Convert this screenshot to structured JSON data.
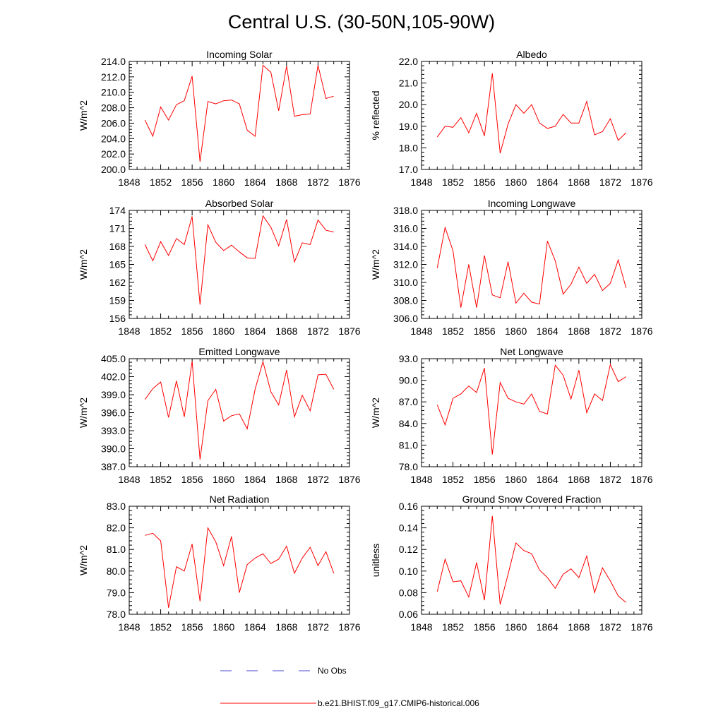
{
  "figure": {
    "title": "Central U.S. (30-50N,105-90W)"
  },
  "legend": {
    "entries": [
      {
        "label": "No Obs",
        "color": "#4a4ad0",
        "style": "dashed"
      },
      {
        "label": "b.e21.BHIST.f09_g17.CMIP6-historical.006",
        "color": "#ff0000",
        "style": "solid"
      }
    ]
  },
  "chart_data": [
    {
      "type": "line",
      "title": "Incoming Solar",
      "ylabel": "W/m^2",
      "xlim": [
        1848,
        1876
      ],
      "ylim": [
        200,
        214
      ],
      "xticks": [
        1848,
        1852,
        1856,
        1860,
        1864,
        1868,
        1872,
        1876
      ],
      "xtick_labels": [
        "1848",
        "1852",
        "1856",
        "1860",
        "1864",
        "1868",
        "1872",
        "1876"
      ],
      "yticks": [
        200,
        202,
        204,
        206,
        208,
        210,
        212,
        214
      ],
      "ytick_labels": [
        "200.0",
        "202.0",
        "204.0",
        "206.0",
        "208.0",
        "210.0",
        "212.0",
        "214.0"
      ],
      "series": [
        {
          "name": "b.e21.BHIST.f09_g17.CMIP6-historical.006",
          "color": "#ff0000",
          "x": [
            1850,
            1851,
            1852,
            1853,
            1854,
            1855,
            1856,
            1857,
            1858,
            1859,
            1860,
            1861,
            1862,
            1863,
            1864,
            1865,
            1866,
            1867,
            1868,
            1869,
            1870,
            1871,
            1872,
            1873,
            1874
          ],
          "values": [
            206.4,
            204.3,
            208.1,
            206.4,
            208.4,
            208.9,
            212.1,
            201.0,
            208.8,
            208.5,
            208.9,
            209.0,
            208.5,
            205.1,
            204.3,
            213.5,
            212.6,
            207.6,
            213.4,
            206.9,
            207.1,
            207.2,
            213.5,
            209.2,
            209.5
          ]
        }
      ]
    },
    {
      "type": "line",
      "title": "Albedo",
      "ylabel": "% reflected",
      "xlim": [
        1848,
        1876
      ],
      "ylim": [
        17,
        22
      ],
      "xticks": [
        1848,
        1852,
        1856,
        1860,
        1864,
        1868,
        1872,
        1876
      ],
      "xtick_labels": [
        "1848",
        "1852",
        "1856",
        "1860",
        "1864",
        "1868",
        "1872",
        "1876"
      ],
      "yticks": [
        17,
        18,
        19,
        20,
        21,
        22
      ],
      "ytick_labels": [
        "17.0",
        "18.0",
        "19.0",
        "20.0",
        "21.0",
        "22.0"
      ],
      "series": [
        {
          "name": "b.e21.BHIST.f09_g17.CMIP6-historical.006",
          "color": "#ff0000",
          "x": [
            1850,
            1851,
            1852,
            1853,
            1854,
            1855,
            1856,
            1857,
            1858,
            1859,
            1860,
            1861,
            1862,
            1863,
            1864,
            1865,
            1866,
            1867,
            1868,
            1869,
            1870,
            1871,
            1872,
            1873,
            1874
          ],
          "values": [
            18.5,
            19.0,
            18.95,
            19.4,
            18.7,
            19.6,
            18.55,
            21.45,
            17.75,
            19.1,
            20.0,
            19.6,
            20.0,
            19.15,
            18.9,
            19.0,
            19.55,
            19.15,
            19.15,
            20.15,
            18.6,
            18.75,
            19.35,
            18.35,
            18.7
          ]
        }
      ]
    },
    {
      "type": "line",
      "title": "Absorbed Solar",
      "ylabel": "W/m^2",
      "xlim": [
        1848,
        1876
      ],
      "ylim": [
        156,
        174
      ],
      "xticks": [
        1848,
        1852,
        1856,
        1860,
        1864,
        1868,
        1872,
        1876
      ],
      "xtick_labels": [
        "1848",
        "1852",
        "1856",
        "1860",
        "1864",
        "1868",
        "1872",
        "1876"
      ],
      "yticks": [
        156,
        159,
        162,
        165,
        168,
        171,
        174
      ],
      "ytick_labels": [
        "156",
        "159",
        "162",
        "165",
        "168",
        "171",
        "174"
      ],
      "series": [
        {
          "name": "b.e21.BHIST.f09_g17.CMIP6-historical.006",
          "color": "#ff0000",
          "x": [
            1850,
            1851,
            1852,
            1853,
            1854,
            1855,
            1856,
            1857,
            1858,
            1859,
            1860,
            1861,
            1862,
            1863,
            1864,
            1865,
            1866,
            1867,
            1868,
            1869,
            1870,
            1871,
            1872,
            1873,
            1874
          ],
          "values": [
            168.3,
            165.6,
            168.8,
            166.5,
            169.3,
            168.3,
            173.0,
            158.3,
            171.6,
            168.7,
            167.3,
            168.2,
            167.1,
            166.1,
            166.0,
            173.1,
            171.2,
            168.1,
            172.5,
            165.4,
            168.6,
            168.3,
            172.4,
            170.7,
            170.4
          ]
        }
      ]
    },
    {
      "type": "line",
      "title": "Incoming Longwave",
      "ylabel": "W/m^2",
      "xlim": [
        1848,
        1876
      ],
      "ylim": [
        306,
        318
      ],
      "xticks": [
        1848,
        1852,
        1856,
        1860,
        1864,
        1868,
        1872,
        1876
      ],
      "xtick_labels": [
        "1848",
        "1852",
        "1856",
        "1860",
        "1864",
        "1868",
        "1872",
        "1876"
      ],
      "yticks": [
        306,
        308,
        310,
        312,
        314,
        316,
        318
      ],
      "ytick_labels": [
        "306.0",
        "308.0",
        "310.0",
        "312.0",
        "314.0",
        "316.0",
        "318.0"
      ],
      "series": [
        {
          "name": "b.e21.BHIST.f09_g17.CMIP6-historical.006",
          "color": "#ff0000",
          "x": [
            1850,
            1851,
            1852,
            1853,
            1854,
            1855,
            1856,
            1857,
            1858,
            1859,
            1860,
            1861,
            1862,
            1863,
            1864,
            1865,
            1866,
            1867,
            1868,
            1869,
            1870,
            1871,
            1872,
            1873,
            1874
          ],
          "values": [
            311.6,
            316.1,
            313.5,
            307.2,
            312.0,
            307.2,
            313.0,
            308.6,
            308.3,
            312.3,
            307.7,
            308.8,
            307.8,
            307.6,
            314.6,
            312.4,
            308.7,
            309.8,
            311.7,
            309.9,
            310.9,
            309.1,
            309.9,
            312.5,
            309.4
          ]
        }
      ]
    },
    {
      "type": "line",
      "title": "Emitted Longwave",
      "ylabel": "W/m^2",
      "xlim": [
        1848,
        1876
      ],
      "ylim": [
        387,
        405
      ],
      "xticks": [
        1848,
        1852,
        1856,
        1860,
        1864,
        1868,
        1872,
        1876
      ],
      "xtick_labels": [
        "1848",
        "1852",
        "1856",
        "1860",
        "1864",
        "1868",
        "1872",
        "1876"
      ],
      "yticks": [
        387,
        390,
        393,
        396,
        399,
        402,
        405
      ],
      "ytick_labels": [
        "387.0",
        "390.0",
        "393.0",
        "396.0",
        "399.0",
        "402.0",
        "405.0"
      ],
      "series": [
        {
          "name": "b.e21.BHIST.f09_g17.CMIP6-historical.006",
          "color": "#ff0000",
          "x": [
            1850,
            1851,
            1852,
            1853,
            1854,
            1855,
            1856,
            1857,
            1858,
            1859,
            1860,
            1861,
            1862,
            1863,
            1864,
            1865,
            1866,
            1867,
            1868,
            1869,
            1870,
            1871,
            1872,
            1873,
            1874
          ],
          "values": [
            398.2,
            400.0,
            401.1,
            395.2,
            401.3,
            395.3,
            404.6,
            388.2,
            398.0,
            399.9,
            394.6,
            395.5,
            395.8,
            393.3,
            399.9,
            404.5,
            399.5,
            397.3,
            403.1,
            395.3,
            398.9,
            396.3,
            402.3,
            402.4,
            399.9
          ]
        }
      ]
    },
    {
      "type": "line",
      "title": "Net Longwave",
      "ylabel": "W/m^2",
      "xlim": [
        1848,
        1876
      ],
      "ylim": [
        78,
        93
      ],
      "xticks": [
        1848,
        1852,
        1856,
        1860,
        1864,
        1868,
        1872,
        1876
      ],
      "xtick_labels": [
        "1848",
        "1852",
        "1856",
        "1860",
        "1864",
        "1868",
        "1872",
        "1876"
      ],
      "yticks": [
        78,
        81,
        84,
        87,
        90,
        93
      ],
      "ytick_labels": [
        "78.0",
        "81.0",
        "84.0",
        "87.0",
        "90.0",
        "93.0"
      ],
      "series": [
        {
          "name": "b.e21.BHIST.f09_g17.CMIP6-historical.006",
          "color": "#ff0000",
          "x": [
            1850,
            1851,
            1852,
            1853,
            1854,
            1855,
            1856,
            1857,
            1858,
            1859,
            1860,
            1861,
            1862,
            1863,
            1864,
            1865,
            1866,
            1867,
            1868,
            1869,
            1870,
            1871,
            1872,
            1873,
            1874
          ],
          "values": [
            86.6,
            83.8,
            87.5,
            88.1,
            89.2,
            88.3,
            91.7,
            79.7,
            89.7,
            87.5,
            87.0,
            86.7,
            88.1,
            85.7,
            85.3,
            92.1,
            90.7,
            87.4,
            91.4,
            85.5,
            88.1,
            87.2,
            92.2,
            89.8,
            90.5
          ]
        }
      ]
    },
    {
      "type": "line",
      "title": "Net Radiation",
      "ylabel": "W/m^2",
      "xlim": [
        1848,
        1876
      ],
      "ylim": [
        78,
        83
      ],
      "xticks": [
        1848,
        1852,
        1856,
        1860,
        1864,
        1868,
        1872,
        1876
      ],
      "xtick_labels": [
        "1848",
        "1852",
        "1856",
        "1860",
        "1864",
        "1868",
        "1872",
        "1876"
      ],
      "yticks": [
        78,
        79,
        80,
        81,
        82,
        83
      ],
      "ytick_labels": [
        "78.0",
        "79.0",
        "80.0",
        "81.0",
        "82.0",
        "83.0"
      ],
      "series": [
        {
          "name": "b.e21.BHIST.f09_g17.CMIP6-historical.006",
          "color": "#ff0000",
          "x": [
            1850,
            1851,
            1852,
            1853,
            1854,
            1855,
            1856,
            1857,
            1858,
            1859,
            1860,
            1861,
            1862,
            1863,
            1864,
            1865,
            1866,
            1867,
            1868,
            1869,
            1870,
            1871,
            1872,
            1873,
            1874
          ],
          "values": [
            81.65,
            81.75,
            81.4,
            78.3,
            80.2,
            80.0,
            81.25,
            78.6,
            82.0,
            81.35,
            80.25,
            81.6,
            79.0,
            80.3,
            80.6,
            80.8,
            80.35,
            80.55,
            81.15,
            79.9,
            80.6,
            81.1,
            80.25,
            80.9,
            79.9
          ]
        }
      ]
    },
    {
      "type": "line",
      "title": "Ground Snow Covered Fraction",
      "ylabel": "unitless",
      "xlim": [
        1848,
        1876
      ],
      "ylim": [
        0.06,
        0.16
      ],
      "xticks": [
        1848,
        1852,
        1856,
        1860,
        1864,
        1868,
        1872,
        1876
      ],
      "xtick_labels": [
        "1848",
        "1852",
        "1856",
        "1860",
        "1864",
        "1868",
        "1872",
        "1876"
      ],
      "yticks": [
        0.06,
        0.08,
        0.1,
        0.12,
        0.14,
        0.16
      ],
      "ytick_labels": [
        "0.06",
        "0.08",
        "0.10",
        "0.12",
        "0.14",
        "0.16"
      ],
      "series": [
        {
          "name": "b.e21.BHIST.f09_g17.CMIP6-historical.006",
          "color": "#ff0000",
          "x": [
            1850,
            1851,
            1852,
            1853,
            1854,
            1855,
            1856,
            1857,
            1858,
            1859,
            1860,
            1861,
            1862,
            1863,
            1864,
            1865,
            1866,
            1867,
            1868,
            1869,
            1870,
            1871,
            1872,
            1873,
            1874
          ],
          "values": [
            0.081,
            0.111,
            0.09,
            0.091,
            0.076,
            0.108,
            0.073,
            0.151,
            0.069,
            0.097,
            0.126,
            0.119,
            0.116,
            0.101,
            0.094,
            0.084,
            0.097,
            0.102,
            0.094,
            0.114,
            0.08,
            0.103,
            0.091,
            0.077,
            0.071
          ]
        }
      ]
    }
  ]
}
